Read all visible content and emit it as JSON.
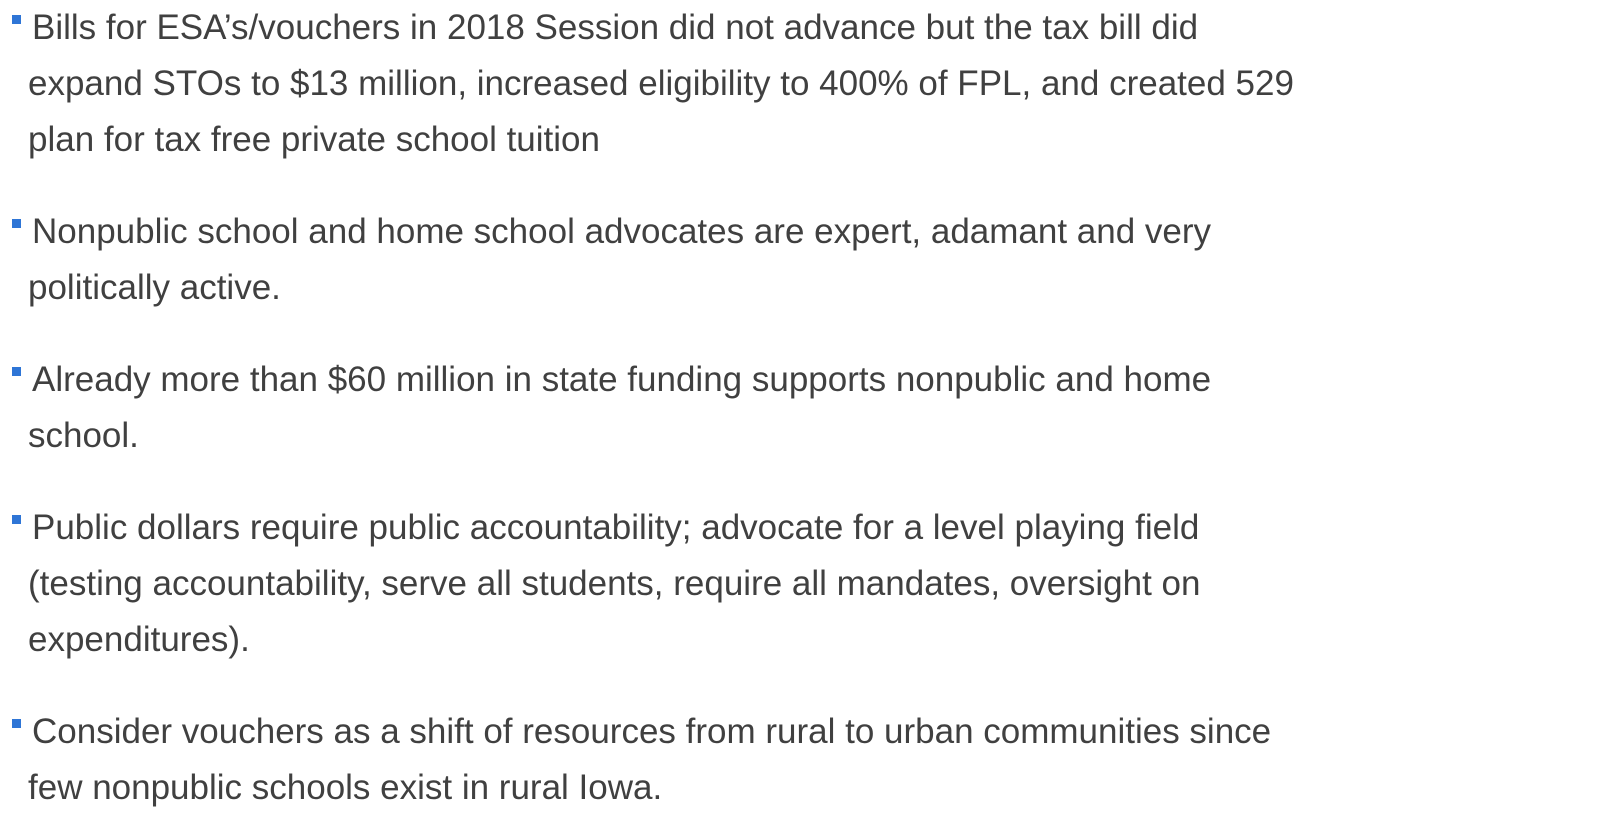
{
  "bullets": [
    {
      "lines": [
        "Bills for ESA’s/vouchers in 2018 Session did not advance but the tax bill did",
        "expand STOs to $13 million, increased eligibility to 400% of FPL, and created 529",
        "plan for tax free private school tuition"
      ]
    },
    {
      "lines": [
        "Nonpublic school and home school advocates are expert, adamant and very",
        "politically active."
      ]
    },
    {
      "lines": [
        "Already more than $60 million in state funding supports nonpublic and home",
        "school."
      ]
    },
    {
      "lines": [
        "Public dollars require public accountability; advocate for a level playing field",
        "(testing accountability, serve all students, require all mandates, oversight on",
        "expenditures)."
      ]
    },
    {
      "lines": [
        "Consider vouchers as a shift of resources from rural to urban communities since",
        "few nonpublic schools exist in rural Iowa."
      ]
    }
  ]
}
